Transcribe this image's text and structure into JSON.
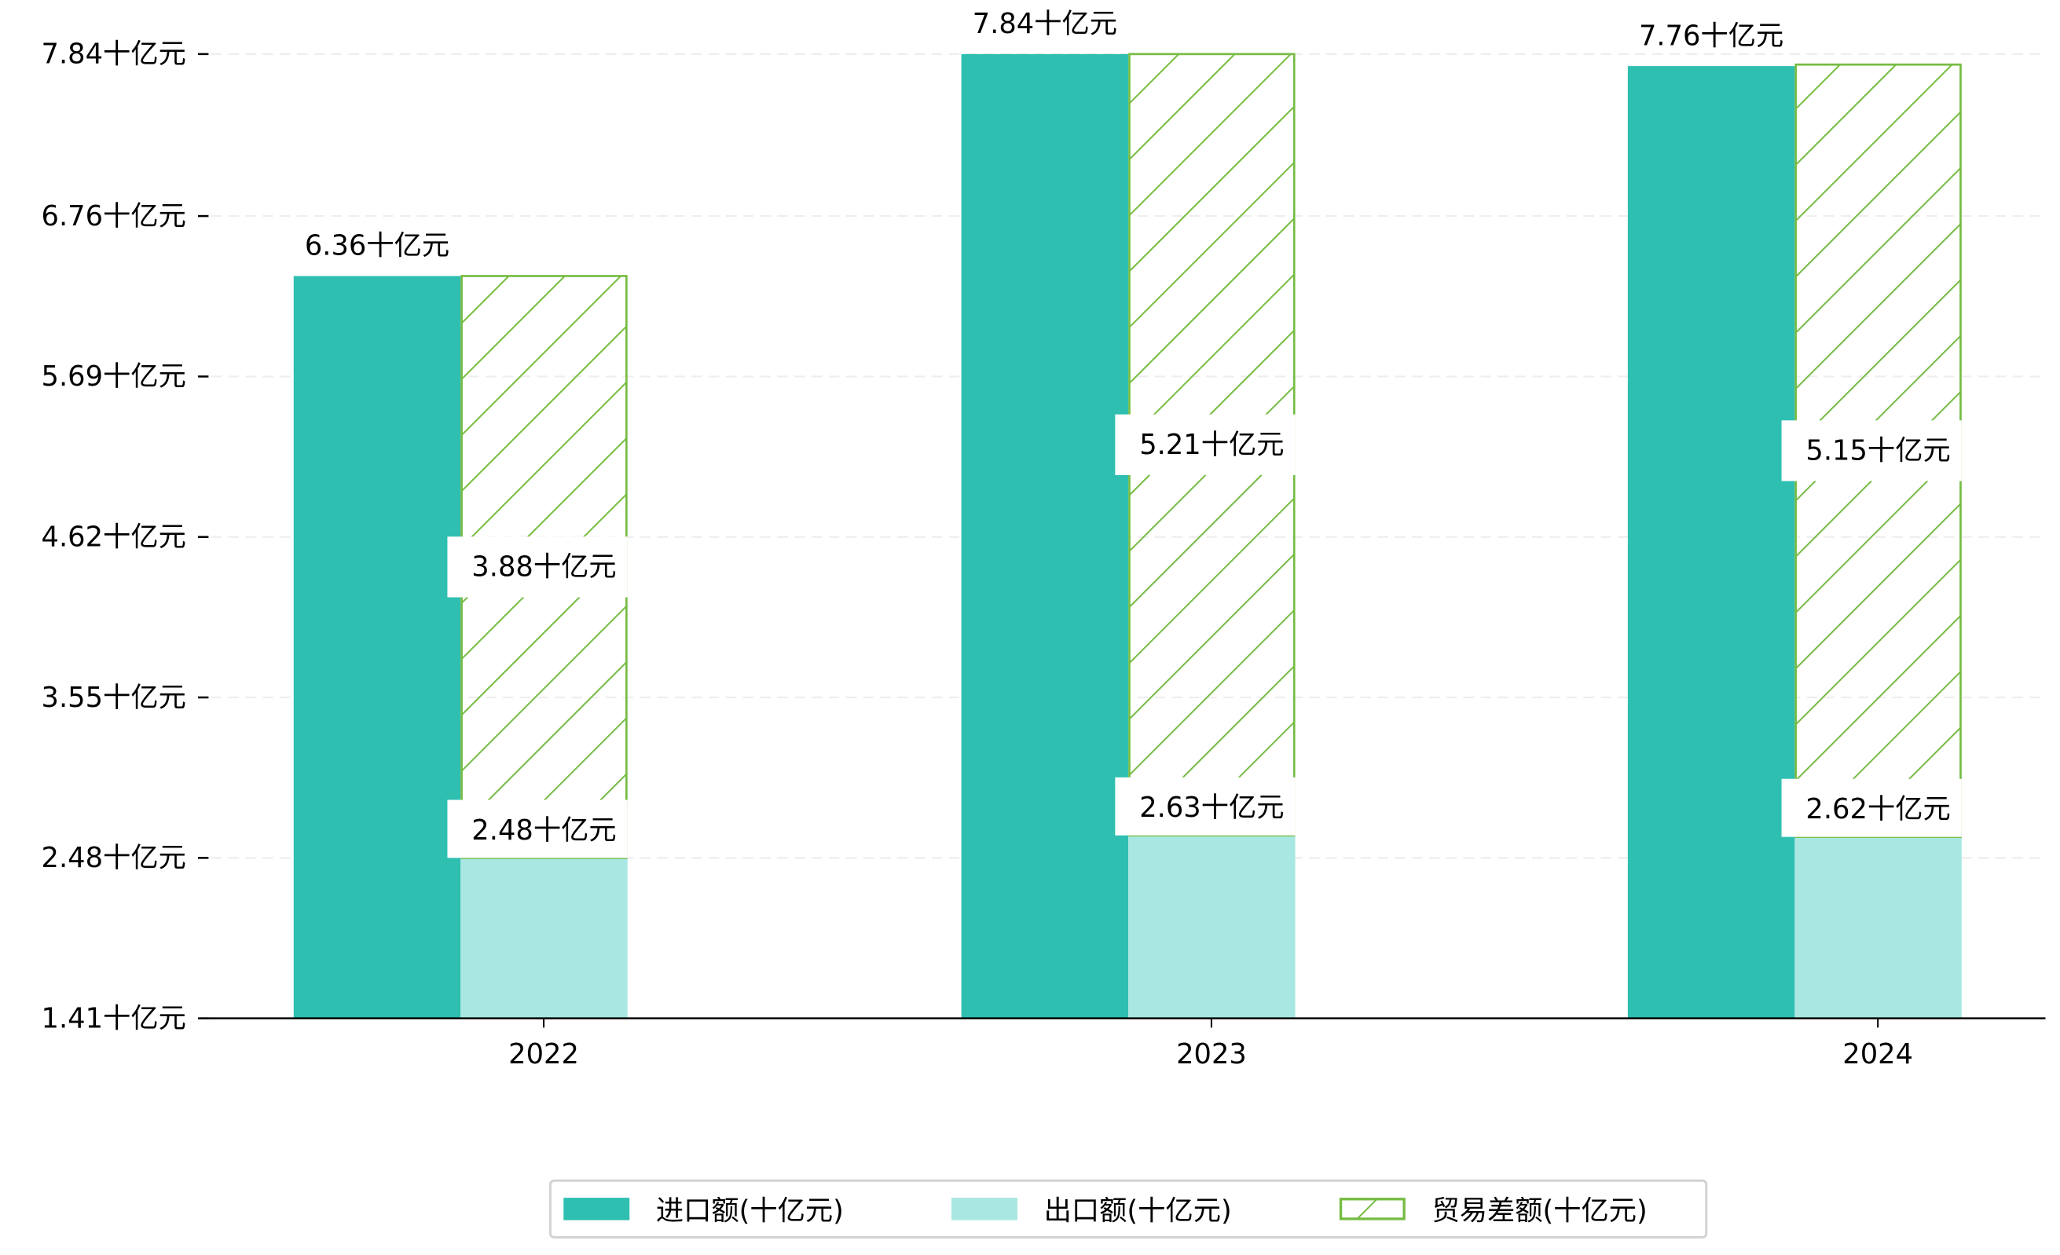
{
  "chart_data": {
    "type": "bar",
    "categories": [
      "2022",
      "2023",
      "2024"
    ],
    "series": [
      {
        "name": "进口额(十亿元)",
        "values": [
          6.36,
          7.84,
          7.76
        ],
        "color": "#2ebfb1",
        "labels": [
          "6.36十亿元",
          "7.84十亿元",
          "7.76十亿元"
        ]
      },
      {
        "name": "出口额(十亿元)",
        "values": [
          2.48,
          2.63,
          2.62
        ],
        "color": "#a9e8e2",
        "labels": [
          "2.48十亿元",
          "2.63十亿元",
          "2.62十亿元"
        ]
      },
      {
        "name": "贸易差额(十亿元)",
        "values": [
          3.88,
          5.21,
          5.15
        ],
        "color": "#76bc43",
        "stacked_on": "出口额(十亿元)",
        "hatch": "/",
        "labels": [
          "3.88十亿元",
          "5.21十亿元",
          "5.15十亿元"
        ]
      }
    ],
    "yticks": [
      1.41,
      2.48,
      3.55,
      4.62,
      5.69,
      6.76,
      7.84
    ],
    "ytick_labels": [
      "1.41十亿元",
      "2.48十亿元",
      "3.55十亿元",
      "4.62十亿元",
      "5.69十亿元",
      "6.76十亿元",
      "7.84十亿元"
    ],
    "ylim": [
      1.41,
      7.84
    ],
    "title": "",
    "xlabel": "",
    "ylabel": "",
    "grid": "horizontal dashed",
    "legend": "bottom-center"
  }
}
